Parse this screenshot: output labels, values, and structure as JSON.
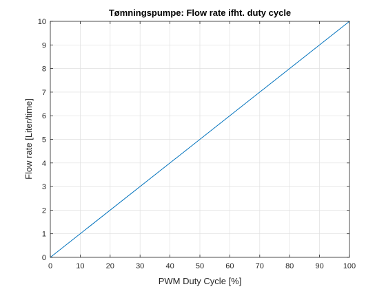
{
  "chart_data": {
    "type": "line",
    "title": "Tømningspumpe: Flow rate ifht. duty cycle",
    "xlabel": "PWM Duty Cycle [%]",
    "ylabel": "Flow rate [Liter/time]",
    "xlim": [
      0,
      100
    ],
    "ylim": [
      0,
      10
    ],
    "xticks": [
      0,
      10,
      20,
      30,
      40,
      50,
      60,
      70,
      80,
      90,
      100
    ],
    "yticks": [
      0,
      1,
      2,
      3,
      4,
      5,
      6,
      7,
      8,
      9,
      10
    ],
    "grid": true,
    "series": [
      {
        "x": [
          0,
          100
        ],
        "y": [
          0,
          10
        ],
        "color": "#0072BD"
      }
    ]
  }
}
